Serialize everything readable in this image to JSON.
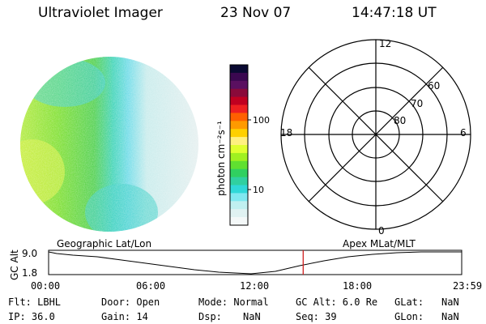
{
  "header": {
    "instrument": "Ultraviolet Imager",
    "date": "23 Nov 07",
    "time": "14:47:18 UT"
  },
  "colorbar": {
    "label": "photon cm⁻²s⁻¹",
    "ticks": [
      "100",
      "10"
    ],
    "colors": [
      "#0a0a32",
      "#3a0850",
      "#5a1060",
      "#8a0a3a",
      "#c00020",
      "#ee2020",
      "#ff6000",
      "#ff9a00",
      "#ffd000",
      "#fff080",
      "#e0ff30",
      "#a0f020",
      "#60e030",
      "#30d060",
      "#30d0a0",
      "#30d8d8",
      "#80e8f0",
      "#c0f0f0",
      "#e0f2f2",
      "#f4f8f8"
    ]
  },
  "polar": {
    "top": "12",
    "bottom": "0",
    "left": "18",
    "right": "6",
    "rings": [
      "60",
      "70",
      "80"
    ]
  },
  "timeline": {
    "ylabel": "GC Alt",
    "top_value": "9.0",
    "bottom_value": "1.8",
    "left_title": "Geographic Lat/Lon",
    "right_title": "Apex MLat/MLT",
    "ticks": [
      "00:00",
      "06:00",
      "12:00",
      "18:00",
      "23:59"
    ],
    "marker_hours": 14.79
  },
  "info": {
    "row1": {
      "flt": "Flt: LBHL",
      "door": "Door: Open",
      "mode": "Mode: Normal",
      "alt": "GC Alt: 6.0 Re",
      "glat_label": "GLat:",
      "glat_value": "NaN"
    },
    "row2": {
      "ip": "IP: 36.0",
      "gain": "Gain: 14",
      "dsp_label": "Dsp:",
      "dsp_value": "NaN",
      "seq": "Seq: 39",
      "glon_label": "GLon:",
      "glon_value": "NaN"
    }
  }
}
